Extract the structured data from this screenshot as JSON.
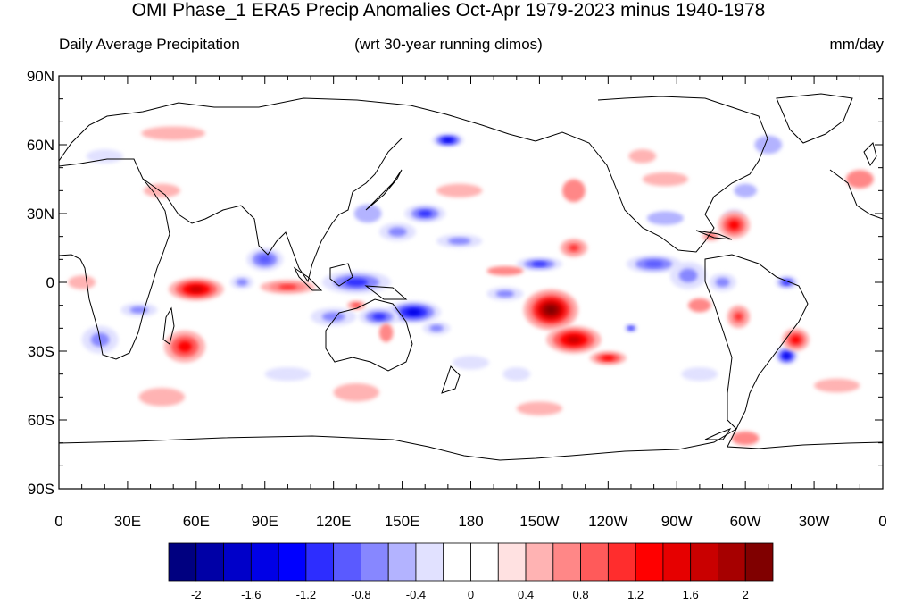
{
  "title": "OMI Phase_1 ERA5 Precip Anomalies Oct-Apr 1979-2023 minus 1940-1978",
  "left_subtitle": "Daily Average Precipitation",
  "center_subtitle": "(wrt 30-year running climos)",
  "units": "mm/day",
  "map": {
    "projection": "cylindrical-equidistant",
    "lon_range": [
      0,
      360
    ],
    "lat_range": [
      -90,
      90
    ],
    "lat_ticks": [
      {
        "value": 90,
        "label": "90N"
      },
      {
        "value": 60,
        "label": "60N"
      },
      {
        "value": 30,
        "label": "30N"
      },
      {
        "value": 0,
        "label": "0"
      },
      {
        "value": -30,
        "label": "30S"
      },
      {
        "value": -60,
        "label": "60S"
      },
      {
        "value": -90,
        "label": "90S"
      }
    ],
    "lon_ticks": [
      {
        "value": 0,
        "label": "0"
      },
      {
        "value": 30,
        "label": "30E"
      },
      {
        "value": 60,
        "label": "60E"
      },
      {
        "value": 90,
        "label": "90E"
      },
      {
        "value": 120,
        "label": "120E"
      },
      {
        "value": 150,
        "label": "150E"
      },
      {
        "value": 180,
        "label": "180"
      },
      {
        "value": 210,
        "label": "150W"
      },
      {
        "value": 240,
        "label": "120W"
      },
      {
        "value": 270,
        "label": "90W"
      },
      {
        "value": 300,
        "label": "60W"
      },
      {
        "value": 330,
        "label": "30W"
      },
      {
        "value": 360,
        "label": "0"
      }
    ],
    "anomaly_blobs": [
      {
        "lon": 170,
        "lat": 62,
        "rx": 7,
        "ry": 3,
        "value": -1.6
      },
      {
        "lon": 160,
        "lat": 30,
        "rx": 9,
        "ry": 4,
        "value": -1.2
      },
      {
        "lon": 175,
        "lat": 18,
        "rx": 10,
        "ry": 3,
        "value": -0.8
      },
      {
        "lon": 148,
        "lat": 22,
        "rx": 8,
        "ry": 4,
        "value": -0.8
      },
      {
        "lon": 135,
        "lat": 30,
        "rx": 6,
        "ry": 4,
        "value": -0.6
      },
      {
        "lon": 90,
        "lat": 10,
        "rx": 8,
        "ry": 5,
        "value": -1.0
      },
      {
        "lon": 80,
        "lat": 0,
        "rx": 5,
        "ry": 3,
        "value": -0.8
      },
      {
        "lon": 130,
        "lat": 0,
        "rx": 15,
        "ry": 5,
        "value": -1.2
      },
      {
        "lon": 155,
        "lat": -13,
        "rx": 12,
        "ry": 5,
        "value": -1.6
      },
      {
        "lon": 140,
        "lat": -15,
        "rx": 9,
        "ry": 4,
        "value": -1.2
      },
      {
        "lon": 120,
        "lat": -15,
        "rx": 10,
        "ry": 4,
        "value": -0.8
      },
      {
        "lon": 165,
        "lat": -20,
        "rx": 6,
        "ry": 3,
        "value": -0.8
      },
      {
        "lon": 210,
        "lat": 8,
        "rx": 10,
        "ry": 3,
        "value": -1.2
      },
      {
        "lon": 260,
        "lat": 8,
        "rx": 12,
        "ry": 4,
        "value": -1.0
      },
      {
        "lon": 275,
        "lat": 3,
        "rx": 8,
        "ry": 6,
        "value": -0.8
      },
      {
        "lon": 290,
        "lat": 0,
        "rx": 6,
        "ry": 4,
        "value": -0.8
      },
      {
        "lon": 318,
        "lat": 0,
        "rx": 5,
        "ry": 3,
        "value": -1.2
      },
      {
        "lon": 295,
        "lat": 28,
        "rx": 5,
        "ry": 4,
        "value": -0.8
      },
      {
        "lon": 265,
        "lat": 28,
        "rx": 8,
        "ry": 3,
        "value": -0.6
      },
      {
        "lon": 250,
        "lat": -20,
        "rx": 3,
        "ry": 2,
        "value": -1.2
      },
      {
        "lon": 318,
        "lat": -32,
        "rx": 5,
        "ry": 4,
        "value": -1.6
      },
      {
        "lon": 18,
        "lat": -25,
        "rx": 8,
        "ry": 6,
        "value": -0.8
      },
      {
        "lon": 35,
        "lat": -12,
        "rx": 8,
        "ry": 3,
        "value": -0.8
      },
      {
        "lon": 310,
        "lat": 60,
        "rx": 6,
        "ry": 4,
        "value": -0.6
      },
      {
        "lon": 300,
        "lat": 40,
        "rx": 5,
        "ry": 3,
        "value": -0.6
      },
      {
        "lon": 195,
        "lat": -5,
        "rx": 8,
        "ry": 3,
        "value": -0.8
      },
      {
        "lon": 215,
        "lat": -12,
        "rx": 12,
        "ry": 9,
        "value": 2.2
      },
      {
        "lon": 225,
        "lat": -25,
        "rx": 12,
        "ry": 6,
        "value": 1.6
      },
      {
        "lon": 240,
        "lat": -33,
        "rx": 8,
        "ry": 3,
        "value": 1.2
      },
      {
        "lon": 225,
        "lat": 15,
        "rx": 6,
        "ry": 4,
        "value": 1.0
      },
      {
        "lon": 60,
        "lat": -3,
        "rx": 12,
        "ry": 5,
        "value": 1.6
      },
      {
        "lon": 100,
        "lat": -2,
        "rx": 12,
        "ry": 3,
        "value": 1.0
      },
      {
        "lon": 55,
        "lat": -28,
        "rx": 9,
        "ry": 7,
        "value": 1.2
      },
      {
        "lon": 295,
        "lat": 25,
        "rx": 7,
        "ry": 6,
        "value": 1.2
      },
      {
        "lon": 297,
        "lat": -15,
        "rx": 5,
        "ry": 5,
        "value": 1.0
      },
      {
        "lon": 322,
        "lat": -25,
        "rx": 6,
        "ry": 5,
        "value": 1.2
      },
      {
        "lon": 195,
        "lat": 5,
        "rx": 8,
        "ry": 2,
        "value": 0.6
      },
      {
        "lon": 280,
        "lat": -10,
        "rx": 5,
        "ry": 3,
        "value": 0.6
      },
      {
        "lon": 225,
        "lat": 40,
        "rx": 5,
        "ry": 5,
        "value": 0.6
      },
      {
        "lon": 350,
        "lat": 45,
        "rx": 6,
        "ry": 4,
        "value": 0.6
      },
      {
        "lon": 130,
        "lat": -10,
        "rx": 4,
        "ry": 2,
        "value": 1.0
      },
      {
        "lon": 285,
        "lat": 20,
        "rx": 4,
        "ry": 2,
        "value": 0.8
      },
      {
        "lon": 300,
        "lat": -68,
        "rx": 6,
        "ry": 3,
        "value": 0.6
      },
      {
        "lon": 143,
        "lat": -22,
        "rx": 3,
        "ry": 4,
        "value": 0.6
      },
      {
        "lon": 265,
        "lat": 45,
        "rx": 10,
        "ry": 3,
        "value": 0.4
      },
      {
        "lon": 45,
        "lat": 40,
        "rx": 8,
        "ry": 3,
        "value": 0.4
      },
      {
        "lon": 50,
        "lat": 65,
        "rx": 14,
        "ry": 3,
        "value": 0.4
      },
      {
        "lon": 130,
        "lat": -48,
        "rx": 10,
        "ry": 4,
        "value": 0.4
      },
      {
        "lon": 45,
        "lat": -50,
        "rx": 10,
        "ry": 4,
        "value": 0.4
      },
      {
        "lon": 210,
        "lat": -55,
        "rx": 10,
        "ry": 3,
        "value": 0.4
      },
      {
        "lon": 340,
        "lat": -45,
        "rx": 10,
        "ry": 3,
        "value": 0.4
      },
      {
        "lon": 10,
        "lat": 0,
        "rx": 6,
        "ry": 3,
        "value": 0.4
      },
      {
        "lon": 175,
        "lat": 40,
        "rx": 10,
        "ry": 3,
        "value": 0.4
      },
      {
        "lon": 255,
        "lat": 55,
        "rx": 6,
        "ry": 3,
        "value": 0.4
      },
      {
        "lon": 100,
        "lat": -40,
        "rx": 10,
        "ry": 3,
        "value": -0.4
      },
      {
        "lon": 280,
        "lat": -40,
        "rx": 8,
        "ry": 3,
        "value": -0.4
      },
      {
        "lon": 200,
        "lat": -40,
        "rx": 6,
        "ry": 3,
        "value": -0.4
      },
      {
        "lon": 20,
        "lat": 55,
        "rx": 8,
        "ry": 3,
        "value": -0.4
      },
      {
        "lon": 180,
        "lat": -35,
        "rx": 8,
        "ry": 3,
        "value": -0.4
      }
    ]
  },
  "colorbar": {
    "colors": [
      "#000080",
      "#0000a6",
      "#0000c9",
      "#0000e6",
      "#0000ff",
      "#2d2dff",
      "#5a5aff",
      "#8787ff",
      "#b3b3ff",
      "#e1e1ff",
      "#ffffff",
      "#ffffff",
      "#ffe1e1",
      "#ffb3b3",
      "#ff8787",
      "#ff5a5a",
      "#ff2d2d",
      "#ff0000",
      "#e60000",
      "#c90000",
      "#a60000",
      "#800000"
    ],
    "tick_labels": [
      "-2",
      "-1.6",
      "-1.2",
      "-0.8",
      "-0.4",
      "0",
      "0.4",
      "0.8",
      "1.2",
      "1.6",
      "2"
    ]
  }
}
